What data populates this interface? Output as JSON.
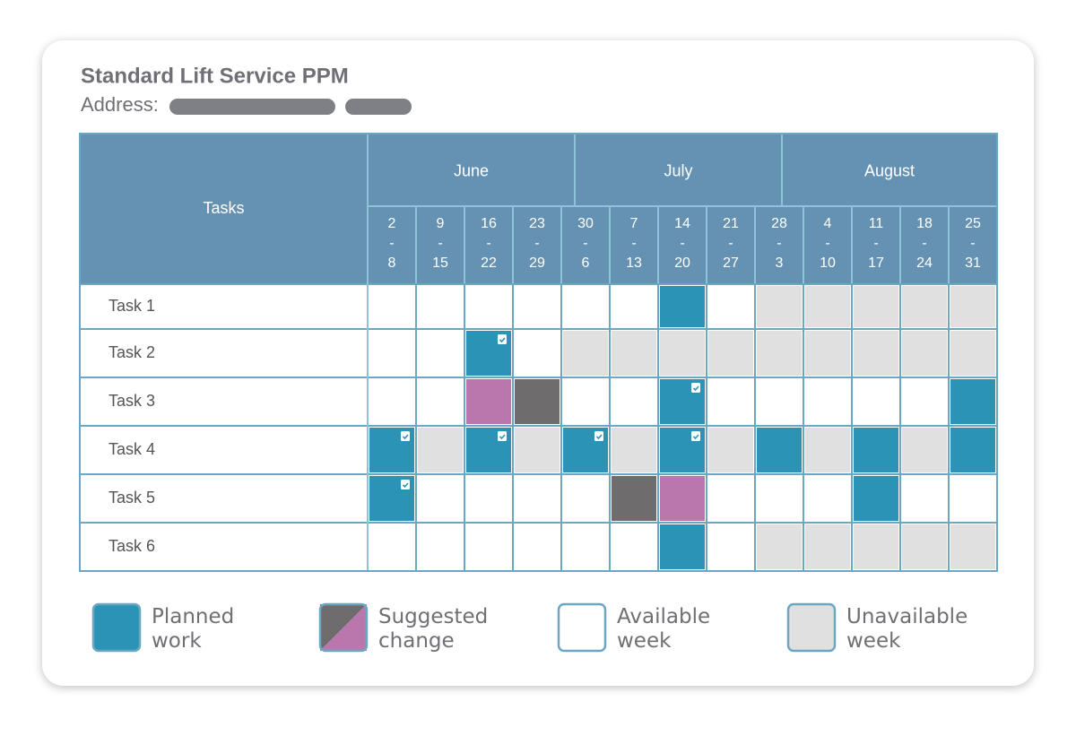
{
  "header": {
    "title": "Standard Lift Service PPM",
    "address_label": "Address:"
  },
  "table": {
    "tasks_header": "Tasks",
    "months": [
      "June",
      "July",
      "August"
    ],
    "range_separator": "-",
    "weeks": [
      {
        "start": 2,
        "end": 8
      },
      {
        "start": 9,
        "end": 15
      },
      {
        "start": 16,
        "end": 22
      },
      {
        "start": 23,
        "end": 29
      },
      {
        "start": 30,
        "end": 6
      },
      {
        "start": 7,
        "end": 13
      },
      {
        "start": 14,
        "end": 20
      },
      {
        "start": 21,
        "end": 27
      },
      {
        "start": 28,
        "end": 3
      },
      {
        "start": 4,
        "end": 10
      },
      {
        "start": 11,
        "end": 17
      },
      {
        "start": 18,
        "end": 24
      },
      {
        "start": 25,
        "end": 31
      }
    ],
    "rows": [
      {
        "label": "Task 1",
        "cells": [
          "#ffffff",
          "#ffffff",
          "#ffffff",
          "#ffffff",
          "#ffffff",
          "#ffffff",
          "#2b93b5",
          "#ffffff",
          "#e0e0e1",
          "#e0e0e1",
          "#e0e0e1",
          "#e0e0e1",
          "#e0e0e1"
        ],
        "checked": [
          false,
          false,
          false,
          false,
          false,
          false,
          false,
          false,
          false,
          false,
          false,
          false,
          false
        ]
      },
      {
        "label": "Task 2",
        "cells": [
          "#ffffff",
          "#ffffff",
          "#2b93b5",
          "#ffffff",
          "#e0e0e1",
          "#e0e0e1",
          "#e0e0e1",
          "#e0e0e1",
          "#e0e0e1",
          "#e0e0e1",
          "#e0e0e1",
          "#e0e0e1",
          "#e0e0e1"
        ],
        "checked": [
          false,
          false,
          true,
          false,
          false,
          false,
          false,
          false,
          false,
          false,
          false,
          false,
          false
        ]
      },
      {
        "label": "Task 3",
        "cells": [
          "#ffffff",
          "#ffffff",
          "#b977ad",
          "#6f6c6d",
          "#ffffff",
          "#ffffff",
          "#2b93b5",
          "#ffffff",
          "#ffffff",
          "#ffffff",
          "#ffffff",
          "#ffffff",
          "#2b93b5"
        ],
        "checked": [
          false,
          false,
          false,
          false,
          false,
          false,
          true,
          false,
          false,
          false,
          false,
          false,
          false
        ]
      },
      {
        "label": "Task 4",
        "cells": [
          "#2b93b5",
          "#e0e0e1",
          "#2b93b5",
          "#e0e0e1",
          "#2b93b5",
          "#e0e0e1",
          "#2b93b5",
          "#e0e0e1",
          "#2b93b5",
          "#e0e0e1",
          "#2b93b5",
          "#e0e0e1",
          "#2b93b5"
        ],
        "checked": [
          true,
          false,
          true,
          false,
          true,
          false,
          true,
          false,
          false,
          false,
          false,
          false,
          false
        ]
      },
      {
        "label": "Task 5",
        "cells": [
          "#2b93b5",
          "#ffffff",
          "#ffffff",
          "#ffffff",
          "#ffffff",
          "#6f6c6d",
          "#b977ad",
          "#ffffff",
          "#ffffff",
          "#ffffff",
          "#2b93b5",
          "#ffffff",
          "#ffffff"
        ],
        "checked": [
          true,
          false,
          false,
          false,
          false,
          false,
          false,
          false,
          false,
          false,
          false,
          false,
          false
        ]
      },
      {
        "label": "Task 6",
        "cells": [
          "#ffffff",
          "#ffffff",
          "#ffffff",
          "#ffffff",
          "#ffffff",
          "#ffffff",
          "#2b93b5",
          "#ffffff",
          "#e0e0e1",
          "#e0e0e1",
          "#e0e0e1",
          "#e0e0e1",
          "#e0e0e1"
        ],
        "checked": [
          false,
          false,
          false,
          false,
          false,
          false,
          false,
          false,
          false,
          false,
          false,
          false,
          false
        ]
      }
    ]
  },
  "legend": [
    {
      "label": "Planned work",
      "colors": [
        "#2b93b5"
      ]
    },
    {
      "label": "Suggested change",
      "colors": [
        "#6f6c6d",
        "#b977ad"
      ]
    },
    {
      "label": "Available week",
      "colors": [
        "#ffffff"
      ]
    },
    {
      "label": "Unavailable week",
      "colors": [
        "#e0e0e1"
      ]
    }
  ]
}
